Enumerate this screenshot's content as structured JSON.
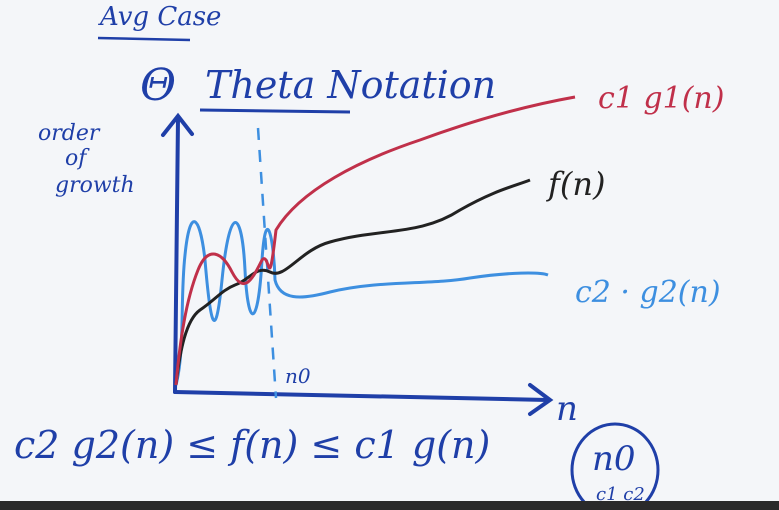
{
  "heading": {
    "top_note": "Avg Case",
    "theta_symbol": "Θ",
    "title": "Theta Notation"
  },
  "axes": {
    "y_label_line1": "order",
    "y_label_line2": "of",
    "y_label_line3": "growth",
    "x_label": "n",
    "threshold_label": "n0"
  },
  "curves": {
    "upper_label": "c1 g1(n)",
    "middle_label": "f(n)",
    "lower_label": "c2 · g2(n)"
  },
  "inequality": "c2 g2(n) ≤ f(n) ≤ c1 g(n)",
  "corner_note": {
    "line1": "n0",
    "line2": "c1 c2"
  },
  "colors": {
    "upper": "#c0304a",
    "middle": "#222222",
    "lower": "#3d8fe0",
    "ink": "#1f3fa8"
  }
}
